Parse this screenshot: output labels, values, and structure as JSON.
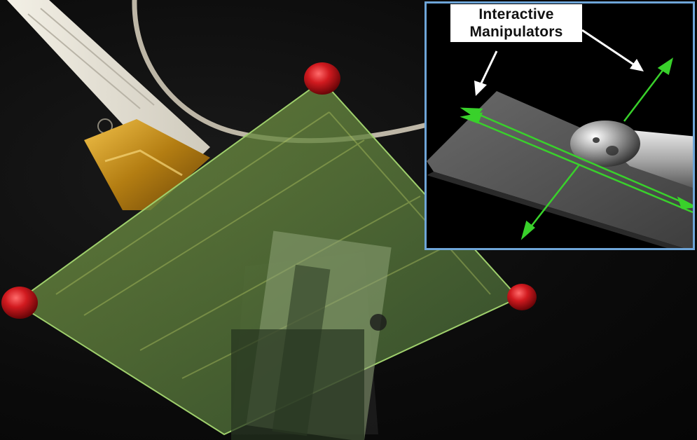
{
  "scene": {
    "name": "ar-plane-registration-view",
    "handle_color": "#c8151a",
    "plane_overlay_color": "#5b8a3a"
  },
  "inset": {
    "border_color": "#6ea5d8",
    "manipulator_color": "#39d12b",
    "callout": {
      "line1": "Interactive",
      "line2": "Manipulators"
    }
  }
}
